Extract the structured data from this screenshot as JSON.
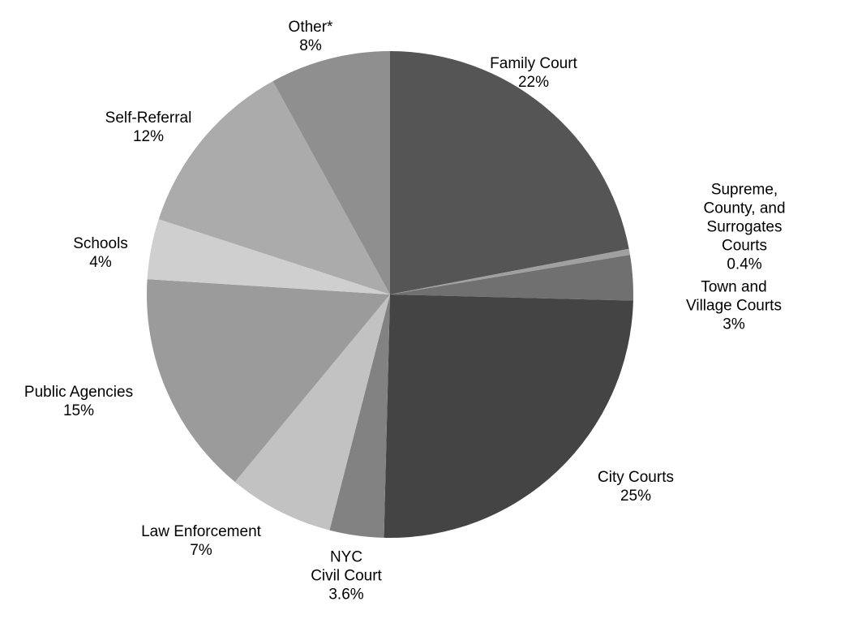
{
  "chart_data": {
    "type": "pie",
    "categories": [
      "Family Court",
      "Supreme, County, and\nSurrogates Courts",
      "Town and\nVillage Courts",
      "City Courts",
      "NYC\nCivil Court",
      "Law Enforcement",
      "Public Agencies",
      "Schools",
      "Self-Referral",
      "Other*"
    ],
    "values": [
      22,
      0.4,
      3,
      25,
      3.6,
      7,
      15,
      4,
      12,
      8
    ],
    "value_labels": [
      "22%",
      "0.4%",
      "3%",
      "25%",
      "3.6%",
      "7%",
      "15%",
      "4%",
      "12%",
      "8%"
    ],
    "colors": [
      "#555555",
      "#a0a0a0",
      "#707070",
      "#444444",
      "#828282",
      "#c2c2c2",
      "#9b9b9b",
      "#cfcfcf",
      "#ababab",
      "#8f8f8f"
    ]
  }
}
